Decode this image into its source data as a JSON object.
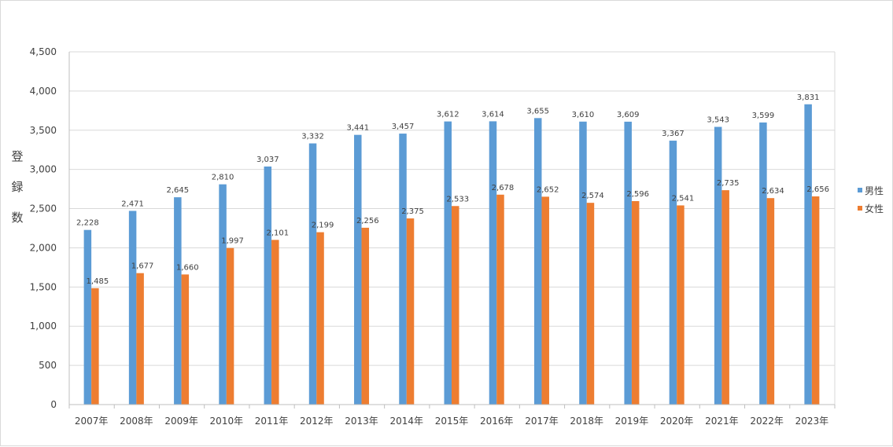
{
  "chart_data": {
    "type": "bar",
    "title": "",
    "xlabel": "",
    "ylabel": "登録数",
    "ylim": [
      0,
      4500
    ],
    "ytick_step": 500,
    "grid": true,
    "legend_position": "right",
    "categories": [
      "2007年",
      "2008年",
      "2009年",
      "2010年",
      "2011年",
      "2012年",
      "2013年",
      "2014年",
      "2015年",
      "2016年",
      "2017年",
      "2018年",
      "2019年",
      "2020年",
      "2021年",
      "2022年",
      "2023年"
    ],
    "series": [
      {
        "name": "男性",
        "color": "#5b9bd5",
        "values": [
          2228,
          2471,
          2645,
          2810,
          3037,
          3332,
          3441,
          3457,
          3612,
          3614,
          3655,
          3610,
          3609,
          3367,
          3543,
          3599,
          3831
        ]
      },
      {
        "name": "女性",
        "color": "#ed7d31",
        "values": [
          1485,
          1677,
          1660,
          1997,
          2101,
          2199,
          2256,
          2375,
          2533,
          2678,
          2652,
          2574,
          2596,
          2541,
          2735,
          2634,
          2656
        ]
      }
    ]
  }
}
